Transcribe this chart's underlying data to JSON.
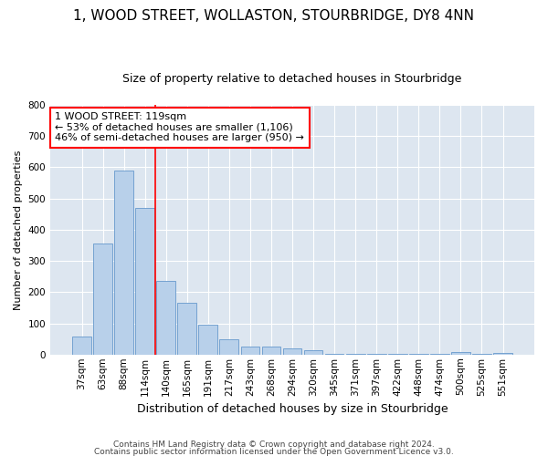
{
  "title": "1, WOOD STREET, WOLLASTON, STOURBRIDGE, DY8 4NN",
  "subtitle": "Size of property relative to detached houses in Stourbridge",
  "xlabel": "Distribution of detached houses by size in Stourbridge",
  "ylabel": "Number of detached properties",
  "bar_labels": [
    "37sqm",
    "63sqm",
    "88sqm",
    "114sqm",
    "140sqm",
    "165sqm",
    "191sqm",
    "217sqm",
    "243sqm",
    "268sqm",
    "294sqm",
    "320sqm",
    "345sqm",
    "371sqm",
    "397sqm",
    "422sqm",
    "448sqm",
    "474sqm",
    "500sqm",
    "525sqm",
    "551sqm"
  ],
  "bar_values": [
    57,
    355,
    590,
    470,
    235,
    165,
    95,
    48,
    25,
    25,
    20,
    14,
    2,
    2,
    2,
    2,
    2,
    2,
    8,
    2,
    5
  ],
  "bar_color": "#b8d0ea",
  "bar_edgecolor": "#6699cc",
  "vline_x": 3.5,
  "vline_color": "red",
  "annotation_text": "1 WOOD STREET: 119sqm\n← 53% of detached houses are smaller (1,106)\n46% of semi-detached houses are larger (950) →",
  "annotation_box_color": "white",
  "annotation_box_edgecolor": "red",
  "ylim": [
    0,
    800
  ],
  "yticks": [
    0,
    100,
    200,
    300,
    400,
    500,
    600,
    700,
    800
  ],
  "footer_line1": "Contains HM Land Registry data © Crown copyright and database right 2024.",
  "footer_line2": "Contains public sector information licensed under the Open Government Licence v3.0.",
  "bg_color": "#dde6f0",
  "fig_bg_color": "#ffffff",
  "title_fontsize": 11,
  "subtitle_fontsize": 9,
  "xlabel_fontsize": 9,
  "ylabel_fontsize": 8,
  "tick_fontsize": 7.5,
  "annotation_fontsize": 8,
  "footer_fontsize": 6.5
}
